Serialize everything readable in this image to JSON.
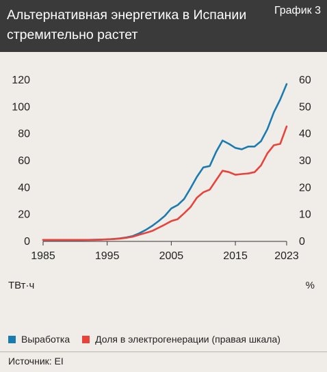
{
  "header": {
    "title": "Альтернативная энергетика в Испании стремительно растет",
    "chart_number": "График 3"
  },
  "units": {
    "left": "ТВт·ч",
    "right": "%"
  },
  "legend": {
    "items": [
      {
        "label": "Выработка",
        "color": "#1a7bb0"
      },
      {
        "label": "Доля в электрогенерации (правая шкала)",
        "color": "#e8423b"
      }
    ]
  },
  "source": "Источник: EI",
  "chart_data": {
    "type": "line",
    "xlim": [
      1985,
      2023
    ],
    "x_ticks": [
      1985,
      1995,
      2005,
      2015,
      2023
    ],
    "y_left": {
      "lim": [
        0,
        120
      ],
      "ticks": [
        0,
        20,
        40,
        60,
        80,
        100,
        120
      ]
    },
    "y_right": {
      "lim": [
        0,
        60
      ],
      "ticks": [
        0,
        10,
        20,
        30,
        40,
        50,
        60
      ]
    },
    "grid": false,
    "legend_position": "bottom",
    "series": [
      {
        "name": "Выработка",
        "axis": "left",
        "color": "#1a7bb0",
        "x": [
          1985,
          1986,
          1987,
          1988,
          1989,
          1990,
          1991,
          1992,
          1993,
          1994,
          1995,
          1996,
          1997,
          1998,
          1999,
          2000,
          2001,
          2002,
          2003,
          2004,
          2005,
          2006,
          2007,
          2008,
          2009,
          2010,
          2011,
          2012,
          2013,
          2014,
          2015,
          2016,
          2017,
          2018,
          2019,
          2020,
          2021,
          2022,
          2023
        ],
        "values": [
          0.5,
          0.5,
          0.5,
          0.5,
          0.5,
          0.5,
          0.5,
          0.6,
          0.7,
          0.8,
          1.0,
          1.3,
          1.8,
          2.5,
          3.5,
          5.5,
          8,
          11,
          14.5,
          18.5,
          24,
          26.5,
          31,
          39,
          47.5,
          54.5,
          55.5,
          66,
          74.5,
          72,
          69,
          68,
          70,
          70,
          74,
          83,
          95.5,
          105,
          116.5
        ]
      },
      {
        "name": "Доля в электрогенерации (правая шкала)",
        "axis": "right",
        "color": "#e8423b",
        "x": [
          1985,
          1986,
          1987,
          1988,
          1989,
          1990,
          1991,
          1992,
          1993,
          1994,
          1995,
          1996,
          1997,
          1998,
          1999,
          2000,
          2001,
          2002,
          2003,
          2004,
          2005,
          2006,
          2007,
          2008,
          2009,
          2010,
          2011,
          2012,
          2013,
          2014,
          2015,
          2016,
          2017,
          2018,
          2019,
          2020,
          2021,
          2022,
          2023
        ],
        "values": [
          0.3,
          0.3,
          0.3,
          0.3,
          0.3,
          0.3,
          0.3,
          0.3,
          0.3,
          0.4,
          0.5,
          0.6,
          0.8,
          1.1,
          1.5,
          2.2,
          2.9,
          3.6,
          4.8,
          6,
          7.3,
          8,
          10.2,
          12.5,
          16,
          18,
          19,
          22.5,
          26,
          25.5,
          24.5,
          24.8,
          25,
          25.5,
          28,
          32.5,
          35.5,
          36,
          42.5
        ]
      }
    ]
  }
}
